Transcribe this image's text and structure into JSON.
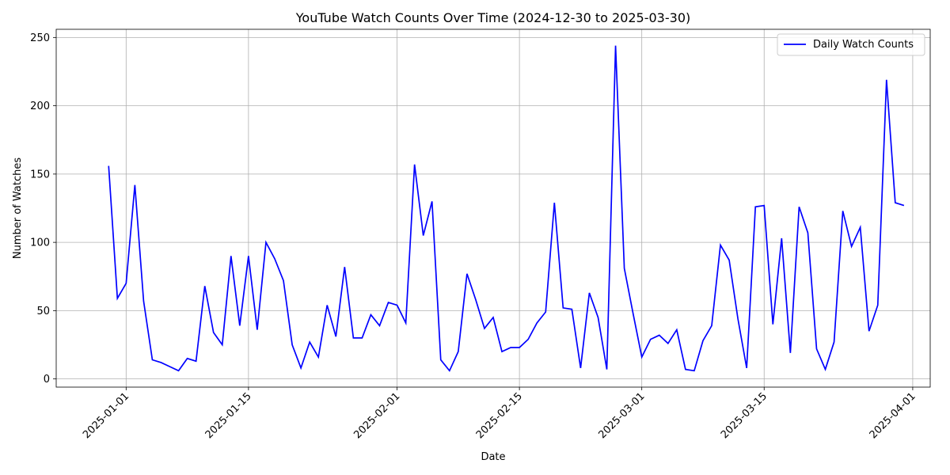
{
  "chart_data": {
    "type": "line",
    "title": "YouTube Watch Counts Over Time (2024-12-30 to 2025-03-30)",
    "xlabel": "Date",
    "ylabel": "Number of Watches",
    "x_start": "2024-12-30",
    "xlim": [
      "2024-12-24",
      "2025-04-03"
    ],
    "ylim": [
      -6,
      256
    ],
    "x_ticks": [
      "2025-01-01",
      "2025-01-15",
      "2025-02-01",
      "2025-02-15",
      "2025-03-01",
      "2025-03-15",
      "2025-04-01"
    ],
    "y_ticks": [
      0,
      50,
      100,
      150,
      200,
      250
    ],
    "grid": true,
    "legend": {
      "position": "top-right",
      "entries": [
        "Daily Watch Counts"
      ]
    },
    "colors": {
      "line": "#0000ff",
      "grid": "#b0b0b0"
    },
    "series": [
      {
        "name": "Daily Watch Counts",
        "values": [
          156,
          59,
          70,
          142,
          57,
          14,
          12,
          9,
          6,
          15,
          13,
          68,
          34,
          25,
          90,
          39,
          90,
          36,
          100,
          88,
          72,
          25,
          8,
          27,
          16,
          54,
          31,
          82,
          30,
          30,
          47,
          39,
          56,
          54,
          41,
          157,
          105,
          130,
          14,
          6,
          20,
          77,
          58,
          37,
          45,
          20,
          23,
          23,
          29,
          41,
          49,
          129,
          52,
          51,
          8,
          63,
          45,
          7,
          244,
          81,
          48,
          16,
          29,
          32,
          26,
          36,
          7,
          6,
          28,
          39,
          98,
          87,
          44,
          8,
          126,
          127,
          40,
          103,
          19,
          126,
          107,
          22,
          7,
          27,
          123,
          97,
          111,
          35,
          54,
          219,
          129,
          127
        ]
      }
    ]
  }
}
